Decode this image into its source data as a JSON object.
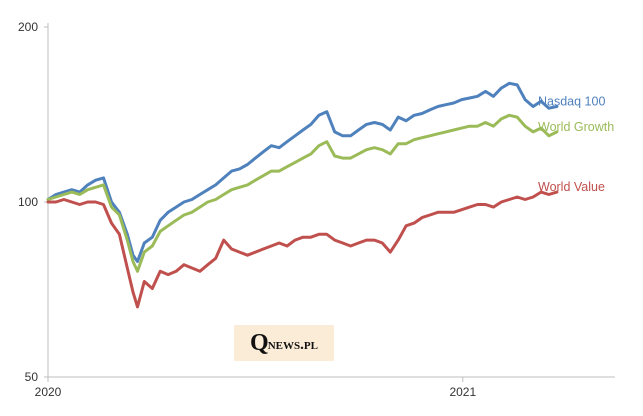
{
  "chart_data": {
    "type": "line",
    "title": "",
    "xlabel": "",
    "ylabel": "",
    "y_scale": "log",
    "ylim": [
      50,
      200
    ],
    "y_ticks": [
      200,
      100,
      50
    ],
    "x_range": [
      "2020-01-01",
      "2021-04-10"
    ],
    "x_ticks": [
      {
        "label": "2020",
        "date": "2020-01-01"
      },
      {
        "label": "2021",
        "date": "2021-01-01"
      }
    ],
    "grid": false,
    "legend": "inline-right",
    "series": [
      {
        "name": "Nasdaq 100",
        "color": "#4f81bd",
        "points": [
          [
            "2020-01-01",
            101
          ],
          [
            "2020-01-08",
            103
          ],
          [
            "2020-01-15",
            104
          ],
          [
            "2020-01-22",
            105
          ],
          [
            "2020-01-29",
            104
          ],
          [
            "2020-02-05",
            107
          ],
          [
            "2020-02-12",
            109
          ],
          [
            "2020-02-19",
            110
          ],
          [
            "2020-02-26",
            100
          ],
          [
            "2020-03-04",
            96
          ],
          [
            "2020-03-11",
            88
          ],
          [
            "2020-03-16",
            81
          ],
          [
            "2020-03-20",
            79
          ],
          [
            "2020-03-26",
            85
          ],
          [
            "2020-04-02",
            87
          ],
          [
            "2020-04-09",
            93
          ],
          [
            "2020-04-16",
            96
          ],
          [
            "2020-04-23",
            98
          ],
          [
            "2020-04-30",
            100
          ],
          [
            "2020-05-07",
            101
          ],
          [
            "2020-05-14",
            103
          ],
          [
            "2020-05-21",
            105
          ],
          [
            "2020-05-28",
            107
          ],
          [
            "2020-06-04",
            110
          ],
          [
            "2020-06-11",
            113
          ],
          [
            "2020-06-18",
            114
          ],
          [
            "2020-06-25",
            116
          ],
          [
            "2020-07-02",
            119
          ],
          [
            "2020-07-09",
            122
          ],
          [
            "2020-07-16",
            125
          ],
          [
            "2020-07-23",
            124
          ],
          [
            "2020-07-30",
            127
          ],
          [
            "2020-08-06",
            130
          ],
          [
            "2020-08-13",
            133
          ],
          [
            "2020-08-20",
            136
          ],
          [
            "2020-08-27",
            141
          ],
          [
            "2020-09-03",
            143
          ],
          [
            "2020-09-10",
            132
          ],
          [
            "2020-09-17",
            130
          ],
          [
            "2020-09-24",
            130
          ],
          [
            "2020-10-01",
            133
          ],
          [
            "2020-10-08",
            136
          ],
          [
            "2020-10-15",
            137
          ],
          [
            "2020-10-22",
            136
          ],
          [
            "2020-10-29",
            133
          ],
          [
            "2020-11-05",
            140
          ],
          [
            "2020-11-12",
            138
          ],
          [
            "2020-11-19",
            141
          ],
          [
            "2020-11-26",
            142
          ],
          [
            "2020-12-03",
            144
          ],
          [
            "2020-12-10",
            146
          ],
          [
            "2020-12-17",
            147
          ],
          [
            "2020-12-24",
            148
          ],
          [
            "2020-12-31",
            150
          ],
          [
            "2021-01-07",
            151
          ],
          [
            "2021-01-14",
            152
          ],
          [
            "2021-01-21",
            155
          ],
          [
            "2021-01-28",
            152
          ],
          [
            "2021-02-04",
            157
          ],
          [
            "2021-02-11",
            160
          ],
          [
            "2021-02-18",
            159
          ],
          [
            "2021-02-25",
            150
          ],
          [
            "2021-03-04",
            146
          ],
          [
            "2021-03-11",
            149
          ],
          [
            "2021-03-18",
            145
          ],
          [
            "2021-03-25",
            146
          ]
        ]
      },
      {
        "name": "World Growth",
        "color": "#9bbb59",
        "points": [
          [
            "2020-01-01",
            101
          ],
          [
            "2020-01-08",
            102
          ],
          [
            "2020-01-15",
            103
          ],
          [
            "2020-01-22",
            104
          ],
          [
            "2020-01-29",
            103
          ],
          [
            "2020-02-05",
            105
          ],
          [
            "2020-02-12",
            106
          ],
          [
            "2020-02-19",
            107
          ],
          [
            "2020-02-26",
            98
          ],
          [
            "2020-03-04",
            95
          ],
          [
            "2020-03-11",
            86
          ],
          [
            "2020-03-16",
            79
          ],
          [
            "2020-03-20",
            76
          ],
          [
            "2020-03-26",
            82
          ],
          [
            "2020-04-02",
            84
          ],
          [
            "2020-04-09",
            89
          ],
          [
            "2020-04-16",
            91
          ],
          [
            "2020-04-23",
            93
          ],
          [
            "2020-04-30",
            95
          ],
          [
            "2020-05-07",
            96
          ],
          [
            "2020-05-14",
            98
          ],
          [
            "2020-05-21",
            100
          ],
          [
            "2020-05-28",
            101
          ],
          [
            "2020-06-04",
            103
          ],
          [
            "2020-06-11",
            105
          ],
          [
            "2020-06-18",
            106
          ],
          [
            "2020-06-25",
            107
          ],
          [
            "2020-07-02",
            109
          ],
          [
            "2020-07-09",
            111
          ],
          [
            "2020-07-16",
            113
          ],
          [
            "2020-07-23",
            113
          ],
          [
            "2020-07-30",
            115
          ],
          [
            "2020-08-06",
            117
          ],
          [
            "2020-08-13",
            119
          ],
          [
            "2020-08-20",
            121
          ],
          [
            "2020-08-27",
            125
          ],
          [
            "2020-09-03",
            127
          ],
          [
            "2020-09-10",
            120
          ],
          [
            "2020-09-17",
            119
          ],
          [
            "2020-09-24",
            119
          ],
          [
            "2020-10-01",
            121
          ],
          [
            "2020-10-08",
            123
          ],
          [
            "2020-10-15",
            124
          ],
          [
            "2020-10-22",
            123
          ],
          [
            "2020-10-29",
            121
          ],
          [
            "2020-11-05",
            126
          ],
          [
            "2020-11-12",
            126
          ],
          [
            "2020-11-19",
            128
          ],
          [
            "2020-11-26",
            129
          ],
          [
            "2020-12-03",
            130
          ],
          [
            "2020-12-10",
            131
          ],
          [
            "2020-12-17",
            132
          ],
          [
            "2020-12-24",
            133
          ],
          [
            "2020-12-31",
            134
          ],
          [
            "2021-01-07",
            135
          ],
          [
            "2021-01-14",
            135
          ],
          [
            "2021-01-21",
            137
          ],
          [
            "2021-01-28",
            135
          ],
          [
            "2021-02-04",
            139
          ],
          [
            "2021-02-11",
            141
          ],
          [
            "2021-02-18",
            140
          ],
          [
            "2021-02-25",
            135
          ],
          [
            "2021-03-04",
            132
          ],
          [
            "2021-03-11",
            134
          ],
          [
            "2021-03-18",
            130
          ],
          [
            "2021-03-25",
            132
          ]
        ]
      },
      {
        "name": "World Value",
        "color": "#c0504d",
        "points": [
          [
            "2020-01-01",
            100
          ],
          [
            "2020-01-08",
            100
          ],
          [
            "2020-01-15",
            101
          ],
          [
            "2020-01-22",
            100
          ],
          [
            "2020-01-29",
            99
          ],
          [
            "2020-02-05",
            100
          ],
          [
            "2020-02-12",
            100
          ],
          [
            "2020-02-19",
            99
          ],
          [
            "2020-02-26",
            92
          ],
          [
            "2020-03-04",
            88
          ],
          [
            "2020-03-11",
            77
          ],
          [
            "2020-03-16",
            70
          ],
          [
            "2020-03-20",
            66
          ],
          [
            "2020-03-26",
            73
          ],
          [
            "2020-04-02",
            71
          ],
          [
            "2020-04-09",
            76
          ],
          [
            "2020-04-16",
            75
          ],
          [
            "2020-04-23",
            76
          ],
          [
            "2020-04-30",
            78
          ],
          [
            "2020-05-07",
            77
          ],
          [
            "2020-05-14",
            76
          ],
          [
            "2020-05-21",
            78
          ],
          [
            "2020-05-28",
            80
          ],
          [
            "2020-06-04",
            86
          ],
          [
            "2020-06-11",
            83
          ],
          [
            "2020-06-18",
            82
          ],
          [
            "2020-06-25",
            81
          ],
          [
            "2020-07-02",
            82
          ],
          [
            "2020-07-09",
            83
          ],
          [
            "2020-07-16",
            84
          ],
          [
            "2020-07-23",
            85
          ],
          [
            "2020-07-30",
            84
          ],
          [
            "2020-08-06",
            86
          ],
          [
            "2020-08-13",
            87
          ],
          [
            "2020-08-20",
            87
          ],
          [
            "2020-08-27",
            88
          ],
          [
            "2020-09-03",
            88
          ],
          [
            "2020-09-10",
            86
          ],
          [
            "2020-09-17",
            85
          ],
          [
            "2020-09-24",
            84
          ],
          [
            "2020-10-01",
            85
          ],
          [
            "2020-10-08",
            86
          ],
          [
            "2020-10-15",
            86
          ],
          [
            "2020-10-22",
            85
          ],
          [
            "2020-10-29",
            82
          ],
          [
            "2020-11-05",
            86
          ],
          [
            "2020-11-12",
            91
          ],
          [
            "2020-11-19",
            92
          ],
          [
            "2020-11-26",
            94
          ],
          [
            "2020-12-03",
            95
          ],
          [
            "2020-12-10",
            96
          ],
          [
            "2020-12-17",
            96
          ],
          [
            "2020-12-24",
            96
          ],
          [
            "2020-12-31",
            97
          ],
          [
            "2021-01-07",
            98
          ],
          [
            "2021-01-14",
            99
          ],
          [
            "2021-01-21",
            99
          ],
          [
            "2021-01-28",
            98
          ],
          [
            "2021-02-04",
            100
          ],
          [
            "2021-02-11",
            101
          ],
          [
            "2021-02-18",
            102
          ],
          [
            "2021-02-25",
            101
          ],
          [
            "2021-03-04",
            102
          ],
          [
            "2021-03-11",
            104
          ],
          [
            "2021-03-18",
            103
          ],
          [
            "2021-03-25",
            104
          ]
        ]
      }
    ]
  },
  "watermark": {
    "initial": "Q",
    "rest": "news.pl"
  }
}
